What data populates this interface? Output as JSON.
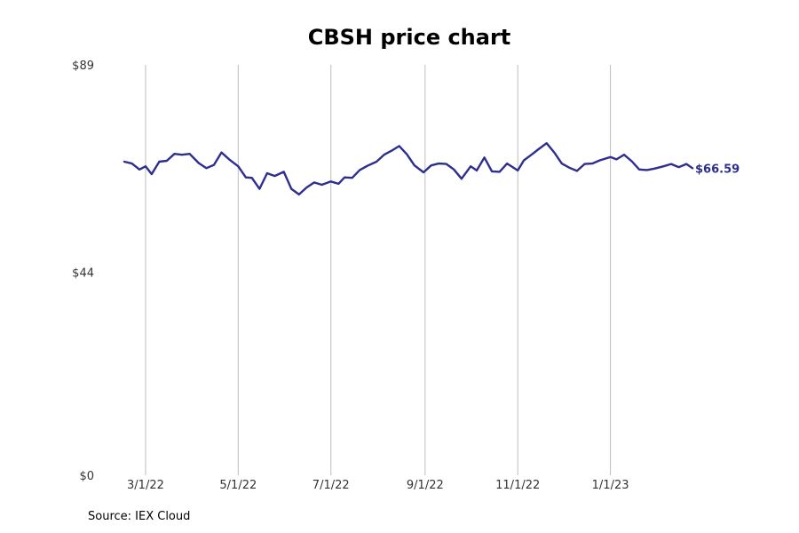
{
  "chart_data": {
    "type": "line",
    "title": "CBSH price chart",
    "xlabel": "",
    "ylabel": "",
    "x_ticks": [
      "3/1/22",
      "5/1/22",
      "7/1/22",
      "9/1/22",
      "11/1/22",
      "1/1/23"
    ],
    "x_range": [
      "2022-02-15",
      "2023-02-24"
    ],
    "y_ticks": [
      "$0",
      "$44",
      "$89"
    ],
    "ylim": [
      0,
      89
    ],
    "grid": "vertical",
    "line_color": "#2e2e8f",
    "end_label": "$66.59",
    "series": [
      {
        "x": [
          "2022-02-15",
          "2022-02-20",
          "2022-02-25",
          "2022-03-01",
          "2022-03-05",
          "2022-03-10",
          "2022-03-15",
          "2022-03-20",
          "2022-03-25",
          "2022-03-30",
          "2022-04-05",
          "2022-04-10",
          "2022-04-15",
          "2022-04-20",
          "2022-04-25",
          "2022-05-01",
          "2022-05-06",
          "2022-05-10",
          "2022-05-15",
          "2022-05-20",
          "2022-05-25",
          "2022-05-31",
          "2022-06-05",
          "2022-06-10",
          "2022-06-15",
          "2022-06-20",
          "2022-06-25",
          "2022-07-01",
          "2022-07-06",
          "2022-07-10",
          "2022-07-15",
          "2022-07-20",
          "2022-07-25",
          "2022-07-31",
          "2022-08-05",
          "2022-08-10",
          "2022-08-15",
          "2022-08-20",
          "2022-08-25",
          "2022-08-31",
          "2022-09-05",
          "2022-09-10",
          "2022-09-15",
          "2022-09-20",
          "2022-09-25",
          "2022-10-01",
          "2022-10-05",
          "2022-10-10",
          "2022-10-15",
          "2022-10-20",
          "2022-10-25",
          "2022-11-01",
          "2022-11-05",
          "2022-11-10",
          "2022-11-15",
          "2022-11-20",
          "2022-11-25",
          "2022-11-30",
          "2022-12-05",
          "2022-12-10",
          "2022-12-15",
          "2022-12-20",
          "2022-12-25",
          "2023-01-01",
          "2023-01-05",
          "2023-01-10",
          "2023-01-15",
          "2023-01-20",
          "2023-01-25",
          "2023-01-30",
          "2023-02-05",
          "2023-02-10",
          "2023-02-15",
          "2023-02-20",
          "2023-02-24"
        ],
        "y": [
          68,
          67.6,
          66.3,
          67,
          65.3,
          68,
          68.2,
          69.7,
          69.5,
          69.7,
          67.7,
          66.6,
          67.3,
          70,
          68.5,
          67,
          64.6,
          64.5,
          62.1,
          65.5,
          64.9,
          65.8,
          62.1,
          60.9,
          62.4,
          63.5,
          63,
          63.7,
          63.2,
          64.6,
          64.5,
          66.2,
          67.1,
          68,
          69.5,
          70.4,
          71.4,
          69.6,
          67.2,
          65.7,
          67.2,
          67.6,
          67.5,
          66.3,
          64.3,
          67,
          66.1,
          68.9,
          65.9,
          65.8,
          67.6,
          66.1,
          68.3,
          69.5,
          70.8,
          72,
          70,
          67.6,
          66.7,
          66,
          67.5,
          67.6,
          68.3,
          69,
          68.5,
          69.5,
          68.1,
          66.3,
          66.2,
          66.5,
          67,
          67.5,
          66.8,
          67.5,
          66.59
        ]
      }
    ]
  },
  "footer": {
    "source": "Source: IEX Cloud"
  }
}
